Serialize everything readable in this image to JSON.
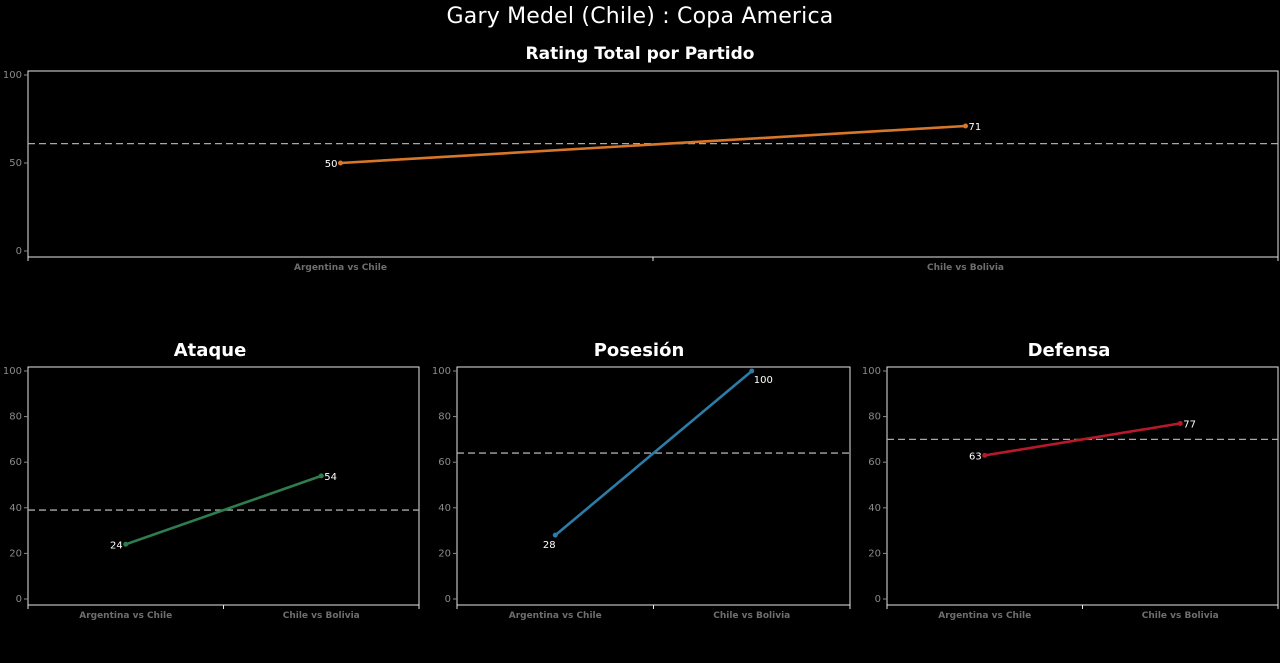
{
  "title": "Gary Medel (Chile) :  Copa  America",
  "chart_data": [
    {
      "id": "total",
      "type": "line",
      "title": "Rating Total por Partido",
      "categories": [
        "Argentina vs Chile",
        "Chile vs Bolivia"
      ],
      "values": [
        50,
        71
      ],
      "ylim": [
        0,
        100
      ],
      "yticks": [
        0,
        50,
        100
      ],
      "reference_line": 61,
      "color": "#d8762a"
    },
    {
      "id": "ataque",
      "type": "line",
      "title": "Ataque",
      "categories": [
        "Argentina vs Chile",
        "Chile vs Bolivia"
      ],
      "values": [
        24,
        54
      ],
      "ylim": [
        0,
        100
      ],
      "yticks": [
        0,
        20,
        40,
        60,
        80,
        100
      ],
      "reference_line": 39,
      "color": "#2e7d4f"
    },
    {
      "id": "posesion",
      "type": "line",
      "title": "Posesión",
      "categories": [
        "Argentina vs Chile",
        "Chile vs Bolivia"
      ],
      "values": [
        28,
        100
      ],
      "ylim": [
        0,
        100
      ],
      "yticks": [
        0,
        20,
        40,
        60,
        80,
        100
      ],
      "reference_line": 64,
      "color": "#2c7ca8"
    },
    {
      "id": "defensa",
      "type": "line",
      "title": "Defensa",
      "categories": [
        "Argentina vs Chile",
        "Chile vs Bolivia"
      ],
      "values": [
        63,
        77
      ],
      "ylim": [
        0,
        100
      ],
      "yticks": [
        0,
        20,
        40,
        60,
        80,
        100
      ],
      "reference_line": 70,
      "color": "#b8182a"
    }
  ]
}
